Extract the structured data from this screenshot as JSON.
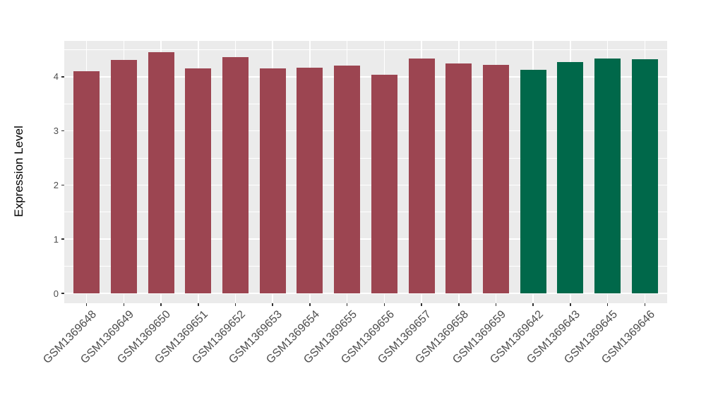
{
  "chart_data": {
    "type": "bar",
    "title": "",
    "xlabel": "",
    "ylabel": "Expression Level",
    "categories": [
      "GSM1369648",
      "GSM1369649",
      "GSM1369650",
      "GSM1369651",
      "GSM1369652",
      "GSM1369653",
      "GSM1369654",
      "GSM1369655",
      "GSM1369656",
      "GSM1369657",
      "GSM1369658",
      "GSM1369659",
      "GSM1369642",
      "GSM1369643",
      "GSM1369645",
      "GSM1369646"
    ],
    "values": [
      4.1,
      4.31,
      4.45,
      4.15,
      4.36,
      4.15,
      4.17,
      4.2,
      4.03,
      4.33,
      4.25,
      4.22,
      4.13,
      4.27,
      4.34,
      4.32
    ],
    "bar_groups": [
      "maroon",
      "maroon",
      "maroon",
      "maroon",
      "maroon",
      "maroon",
      "maroon",
      "maroon",
      "maroon",
      "maroon",
      "maroon",
      "maroon",
      "green",
      "green",
      "green",
      "green"
    ],
    "palette": {
      "maroon": "#9C4551",
      "green": "#00684A"
    },
    "yticks": [
      0,
      1,
      2,
      3,
      4
    ],
    "minor_yticks": [
      0.5,
      1.5,
      2.5,
      3.5,
      4.5
    ],
    "ylim": [
      0,
      4.66
    ],
    "grid": "on",
    "legend_position": "none",
    "bar_width_fraction": 0.7,
    "x_label_angle_deg": 45,
    "panel_bg": "#EBEBEB",
    "grid_color": "#FFFFFF",
    "figure_bg": "#FFFFFF",
    "axis_text_color": "#4D4D4D",
    "axis_title_color": "#000000",
    "tick_mark_color": "#333333"
  }
}
